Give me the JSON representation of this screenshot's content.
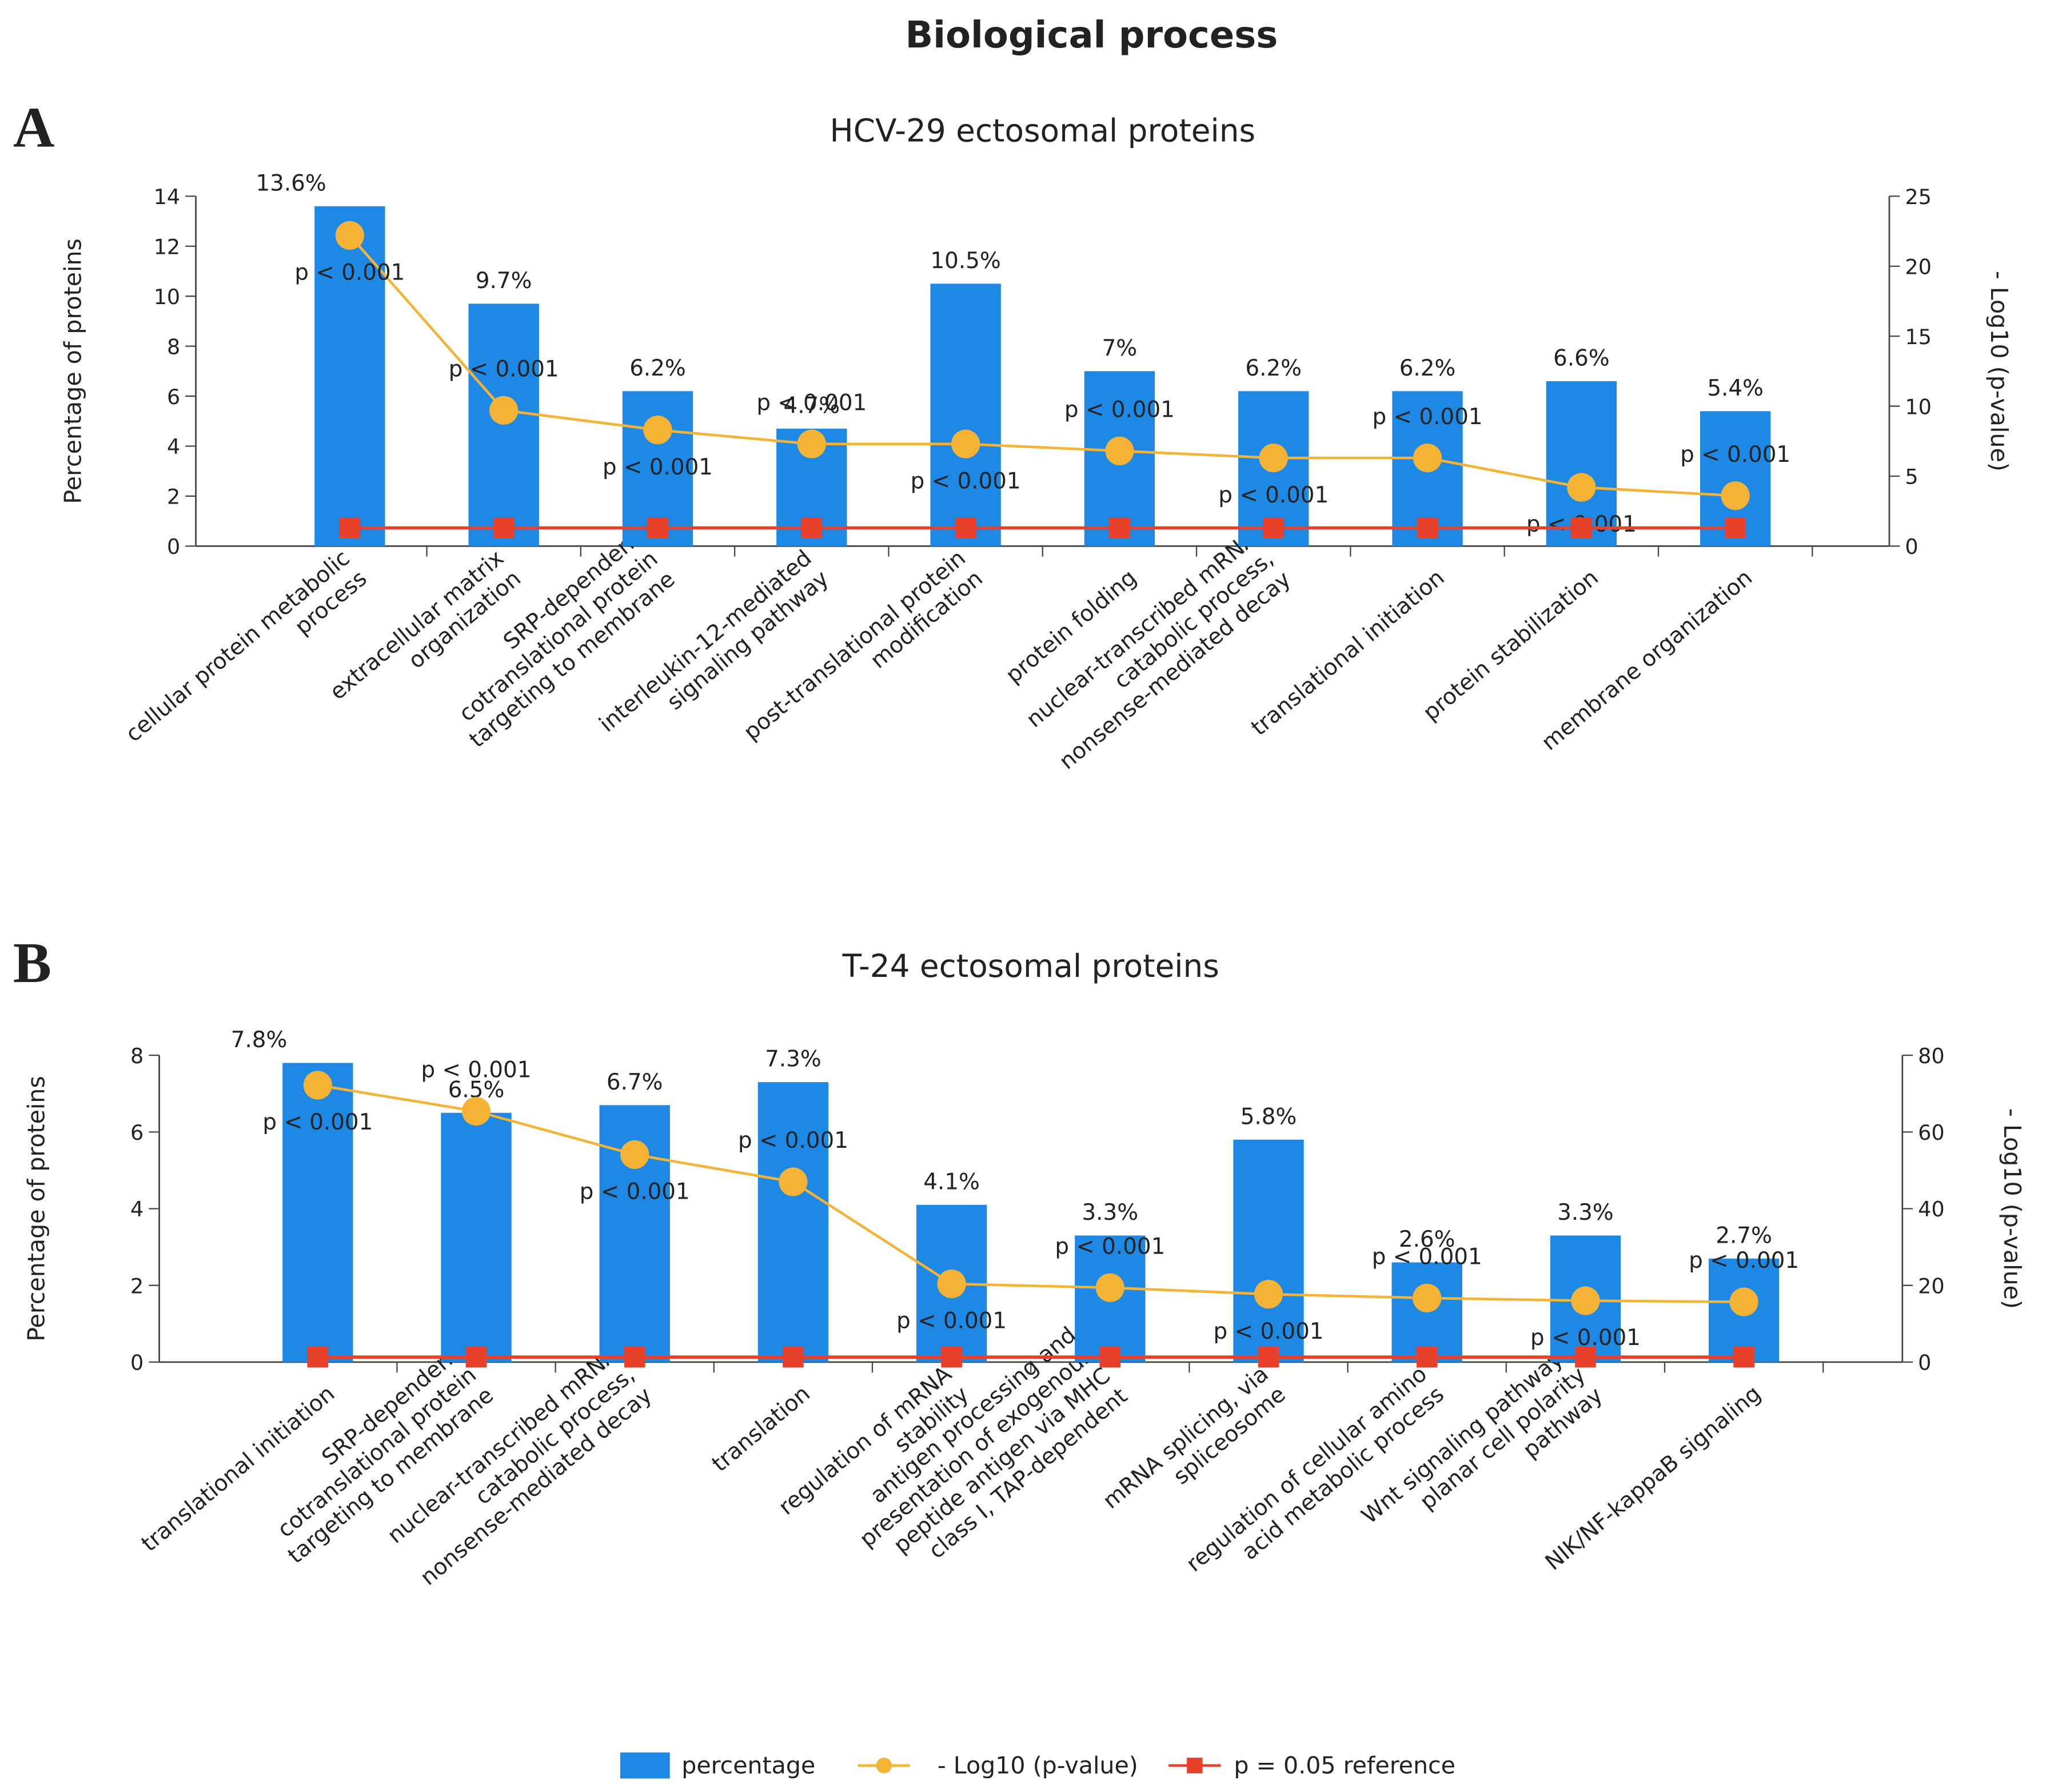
{
  "title": "Biological process",
  "chart_data": [
    {
      "type": "combo",
      "panel": "A",
      "title": "HCV-29 ectosomal proteins",
      "y_label": "Percentage of proteins",
      "y2_label": "- Log10 (p-value)",
      "categories": [
        [
          "cellular protein metabolic",
          "process"
        ],
        [
          "extracellular matrix",
          "organization"
        ],
        [
          "SRP-dependent",
          "cotranslational protein",
          "targeting to membrane"
        ],
        [
          "interleukin-12-mediated",
          "signaling pathway"
        ],
        [
          "post-translational protein",
          "modification"
        ],
        [
          "protein folding"
        ],
        [
          "nuclear-transcribed mRNA",
          "catabolic process,",
          "nonsense-mediated decay"
        ],
        [
          "translational initiation"
        ],
        [
          "protein stabilization"
        ],
        [
          "membrane organization"
        ]
      ],
      "series": [
        {
          "name": "percentage",
          "color": "#1e88e5",
          "values": [
            13.6,
            9.7,
            6.2,
            4.7,
            10.5,
            7,
            6.2,
            6.2,
            6.6,
            5.4
          ],
          "value_labels": [
            "13.6%",
            "9.7%",
            "6.2%",
            "4.7%",
            "10.5%",
            "7%",
            "6.2%",
            "6.2%",
            "6.6%",
            "5.4%"
          ]
        },
        {
          "name": "- Log10 (p-value)",
          "color": "#f5b335",
          "axis": "y2",
          "values": [
            22.2,
            9.7,
            8.3,
            7.3,
            7.3,
            6.8,
            6.3,
            6.3,
            4.2,
            3.6
          ],
          "point_labels": [
            "p < 0.001",
            "p < 0.001",
            "p < 0.001",
            "p < 0.001",
            "p < 0.001",
            "p < 0.001",
            "p < 0.001",
            "p < 0.001",
            "p < 0.001",
            "p < 0.001"
          ]
        },
        {
          "name": "p = 0.05 reference",
          "color": "#e8402a",
          "axis": "y2",
          "values": [
            1.3,
            1.3,
            1.3,
            1.3,
            1.3,
            1.3,
            1.3,
            1.3,
            1.3,
            1.3
          ]
        }
      ],
      "ylim": [
        0,
        14
      ],
      "yticks": [
        0,
        2,
        4,
        6,
        8,
        10,
        12,
        14
      ],
      "y2lim": [
        0,
        25
      ],
      "y2ticks": [
        0,
        5,
        10,
        15,
        20,
        25
      ]
    },
    {
      "type": "combo",
      "panel": "B",
      "title": "T-24 ectosomal proteins",
      "y_label": "Percentage of proteins",
      "y2_label": "- Log10 (p-value)",
      "categories": [
        [
          "translational initiation"
        ],
        [
          "SRP-dependent",
          "cotranslational protein",
          "targeting to membrane"
        ],
        [
          "nuclear-transcribed mRNA",
          "catabolic process,",
          "nonsense-mediated decay"
        ],
        [
          "translation"
        ],
        [
          "regulation of mRNA",
          "stability"
        ],
        [
          "antigen processing and",
          "presentation of exogenous",
          "peptide antigen via MHC",
          "class I, TAP-dependent"
        ],
        [
          "mRNA splicing, via",
          "spliceosome"
        ],
        [
          "regulation of cellular amino",
          "acid metabolic process"
        ],
        [
          "Wnt signaling pathway,",
          "planar cell polarity",
          "pathway"
        ],
        [
          "NIK/NF-kappaB signaling"
        ]
      ],
      "series": [
        {
          "name": "percentage",
          "color": "#1e88e5",
          "values": [
            7.8,
            6.5,
            6.7,
            7.3,
            4.1,
            3.3,
            5.8,
            2.6,
            3.3,
            2.7
          ],
          "value_labels": [
            "7.8%",
            "6.5%",
            "6.7%",
            "7.3%",
            "4.1%",
            "3.3%",
            "5.8%",
            "2.6%",
            "3.3%",
            "2.7%"
          ]
        },
        {
          "name": "- Log10 (p-value)",
          "color": "#f5b335",
          "axis": "y2",
          "values": [
            72.2,
            65.4,
            54.1,
            47,
            20.4,
            19.4,
            17.7,
            16.7,
            16,
            15.7
          ],
          "point_labels": [
            "p < 0.001",
            "p < 0.001",
            "p < 0.001",
            "p < 0.001",
            "p < 0.001",
            "p < 0.001",
            "p < 0.001",
            "p < 0.001",
            "p < 0.001",
            "p < 0.001"
          ]
        },
        {
          "name": "p = 0.05 reference",
          "color": "#e8402a",
          "axis": "y2",
          "values": [
            1.3,
            1.3,
            1.3,
            1.3,
            1.3,
            1.3,
            1.3,
            1.3,
            1.3,
            1.3
          ]
        }
      ],
      "ylim": [
        0,
        8
      ],
      "yticks": [
        0,
        2,
        4,
        6,
        8
      ],
      "y2lim": [
        0,
        80
      ],
      "y2ticks": [
        0,
        20,
        40,
        60,
        80
      ]
    }
  ]
}
